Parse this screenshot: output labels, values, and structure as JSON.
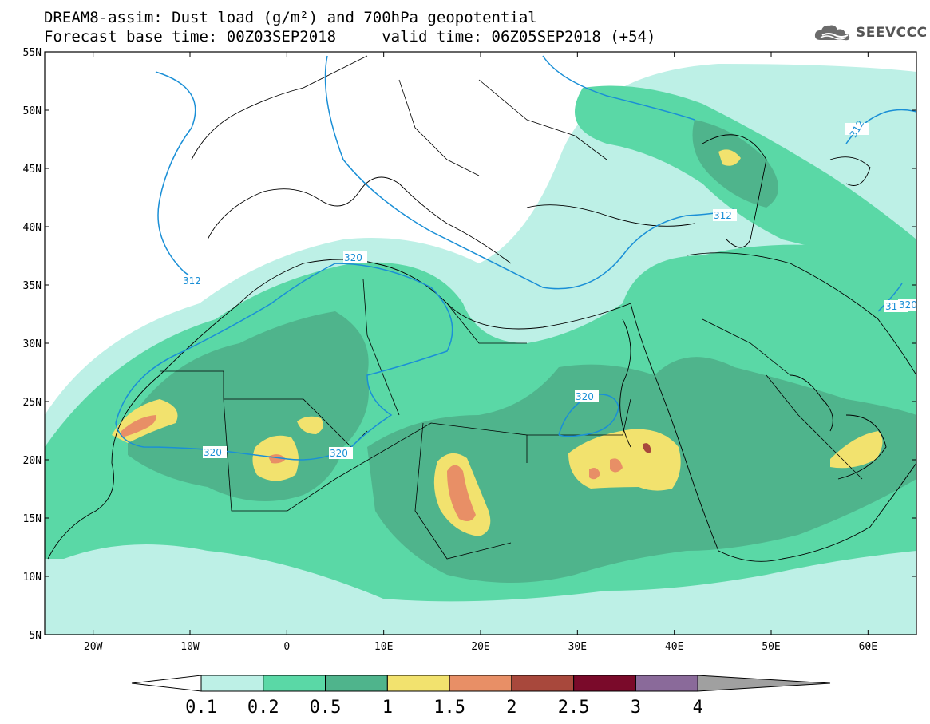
{
  "title": {
    "line1": "DREAM8-assim: Dust load (g/m²) and 700hPa geopotential",
    "line2": "Forecast base time: 00Z03SEP2018     valid time: 06Z05SEP2018 (+54)"
  },
  "logo": {
    "text": "SEEVCCC",
    "icon": "cloud-icon"
  },
  "map": {
    "lat_labels": [
      "55N",
      "50N",
      "45N",
      "40N",
      "35N",
      "30N",
      "25N",
      "20N",
      "15N",
      "10N",
      "5N"
    ],
    "lon_labels": [
      "20W",
      "10W",
      "0",
      "10E",
      "20E",
      "30E",
      "40E",
      "50E",
      "60E"
    ],
    "lon_range": [
      -25,
      65
    ],
    "lat_range": [
      5,
      55
    ],
    "contour_labels": [
      "312",
      "312",
      "312",
      "312",
      "320",
      "320",
      "320",
      "320",
      "320"
    ]
  },
  "colorbar": {
    "labels": [
      "0.1",
      "0.2",
      "0.5",
      "1",
      "1.5",
      "2",
      "2.5",
      "3",
      "4"
    ],
    "colors": [
      "#ffffff",
      "#bdf0e6",
      "#5ad8a6",
      "#4fb48c",
      "#f2e26e",
      "#e88f66",
      "#a8483c",
      "#7a0a2a",
      "#8a6a9a",
      "#a0a0a0"
    ]
  }
}
